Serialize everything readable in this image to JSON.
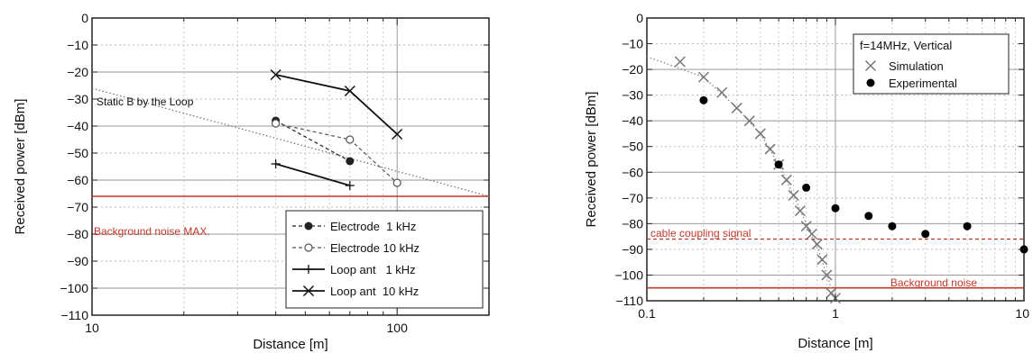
{
  "chart_data": [
    {
      "type": "line",
      "xscale": "log",
      "xlim": [
        10,
        200
      ],
      "ylim": [
        -110,
        0
      ],
      "xlabel": "Distance [m]",
      "ylabel": "Received power [dBm]",
      "x_ticks": [
        10,
        100
      ],
      "x_tick_labels": [
        "10",
        "100"
      ],
      "y_ticks": [
        0,
        -10,
        -20,
        -30,
        -40,
        -50,
        -60,
        -70,
        -80,
        -90,
        -100,
        -110
      ],
      "y_tick_labels": [
        "0",
        "−10",
        "−20",
        "−30",
        "−40",
        "−50",
        "−60",
        "−70",
        "−80",
        "−90",
        "−100",
        "−110"
      ],
      "grid": true,
      "legend_position": "bottom-right",
      "series": [
        {
          "name": "Electrode  1 kHz",
          "marker": "filled-circle",
          "line": "dashed",
          "color": "#222222",
          "points": [
            [
              40,
              -38
            ],
            [
              70,
              -53
            ]
          ]
        },
        {
          "name": "Electrode 10 kHz",
          "marker": "open-circle",
          "line": "dashed",
          "color": "#555555",
          "points": [
            [
              40,
              -39
            ],
            [
              70,
              -45
            ],
            [
              100,
              -61
            ]
          ]
        },
        {
          "name": "Loop ant   1 kHz",
          "marker": "plus",
          "line": "solid",
          "color": "#111111",
          "points": [
            [
              40,
              -54
            ],
            [
              70,
              -62
            ]
          ]
        },
        {
          "name": "Loop ant  10 kHz",
          "marker": "x",
          "line": "solid",
          "color": "#111111",
          "points": [
            [
              40,
              -21
            ],
            [
              70,
              -27
            ],
            [
              100,
              -43
            ]
          ]
        }
      ],
      "reference_lines": [
        {
          "label": "Static B by the Loop",
          "style": "dotted",
          "color": "#777777",
          "points": [
            [
              10,
              -26
            ],
            [
              200,
              -66
            ]
          ]
        },
        {
          "label": "Background noise MAX.",
          "style": "solid",
          "color": "#c0392b",
          "y": -66
        }
      ]
    },
    {
      "type": "scatter",
      "xscale": "log",
      "xlim": [
        0.1,
        10
      ],
      "ylim": [
        -110,
        0
      ],
      "xlabel": "Distance [m]",
      "ylabel": "Received power [dBm]",
      "x_ticks": [
        0.1,
        1,
        10
      ],
      "x_tick_labels": [
        "0.1",
        "1",
        "10"
      ],
      "y_ticks": [
        0,
        -10,
        -20,
        -30,
        -40,
        -50,
        -60,
        -70,
        -80,
        -90,
        -100,
        -110
      ],
      "y_tick_labels": [
        "0",
        "−10",
        "−20",
        "−30",
        "−40",
        "−50",
        "−60",
        "−70",
        "−80",
        "−90",
        "−100",
        "−110"
      ],
      "grid": true,
      "legend_title": "f=14MHz, Vertical",
      "legend_position": "top-right",
      "series": [
        {
          "name": "Simulation",
          "marker": "x",
          "color": "#777777",
          "points": [
            [
              0.15,
              -17
            ],
            [
              0.2,
              -23
            ],
            [
              0.25,
              -29
            ],
            [
              0.3,
              -35
            ],
            [
              0.35,
              -40
            ],
            [
              0.4,
              -45
            ],
            [
              0.45,
              -51
            ],
            [
              0.5,
              -57
            ],
            [
              0.55,
              -63
            ],
            [
              0.6,
              -69
            ],
            [
              0.65,
              -75
            ],
            [
              0.7,
              -81
            ],
            [
              0.75,
              -84
            ],
            [
              0.8,
              -88
            ],
            [
              0.85,
              -94
            ],
            [
              0.9,
              -100
            ],
            [
              0.95,
              -107
            ],
            [
              1.0,
              -109
            ]
          ]
        },
        {
          "name": "Experimental",
          "marker": "filled-circle",
          "color": "#000000",
          "points": [
            [
              0.2,
              -32
            ],
            [
              0.5,
              -57
            ],
            [
              0.7,
              -66
            ],
            [
              1.0,
              -74
            ],
            [
              1.5,
              -77
            ],
            [
              2.0,
              -81
            ],
            [
              3.0,
              -84
            ],
            [
              5.0,
              -81
            ],
            [
              10.0,
              -90
            ]
          ]
        }
      ],
      "reference_lines": [
        {
          "label": "cable coupling signal",
          "style": "dashed",
          "color": "#c0392b",
          "y": -86
        },
        {
          "label": "Background noise",
          "style": "solid",
          "color": "#c0392b",
          "y": -105
        }
      ],
      "dotted_curve": [
        [
          0.1,
          -15
        ],
        [
          0.2,
          -23
        ],
        [
          0.3,
          -35
        ],
        [
          0.4,
          -45
        ],
        [
          0.5,
          -57
        ],
        [
          0.6,
          -69
        ],
        [
          0.7,
          -80
        ],
        [
          0.8,
          -89
        ],
        [
          0.9,
          -100
        ],
        [
          1.0,
          -110
        ]
      ]
    }
  ]
}
